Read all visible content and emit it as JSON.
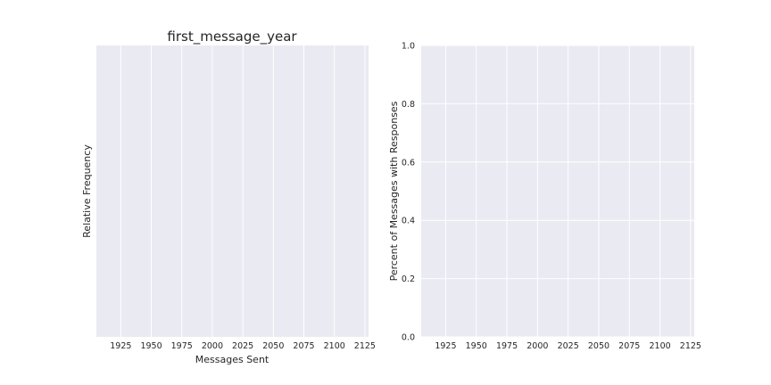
{
  "chart_data": [
    {
      "type": "bar",
      "title": "first_message_year",
      "xlabel": "Messages Sent",
      "ylabel": "Relative Frequency",
      "xlim": [
        1905,
        2128
      ],
      "xticks": [
        "1925",
        "1950",
        "1975",
        "2000",
        "2025",
        "2050",
        "2075",
        "2100",
        "2125"
      ],
      "yticks": [],
      "grid": true,
      "series": []
    },
    {
      "type": "line",
      "title": "",
      "xlabel": "",
      "ylabel": "Percent of Messages with Responses",
      "xlim": [
        1905,
        2128
      ],
      "ylim": [
        0.0,
        1.0
      ],
      "xticks": [
        "1925",
        "1950",
        "1975",
        "2000",
        "2025",
        "2050",
        "2075",
        "2100",
        "2125"
      ],
      "yticks": [
        "0.0",
        "0.2",
        "0.4",
        "0.6",
        "0.8",
        "1.0"
      ],
      "grid": true,
      "series": []
    }
  ],
  "colors": {
    "axes_background": "#eaeaf2",
    "grid": "#ffffff",
    "text": "#262626"
  }
}
